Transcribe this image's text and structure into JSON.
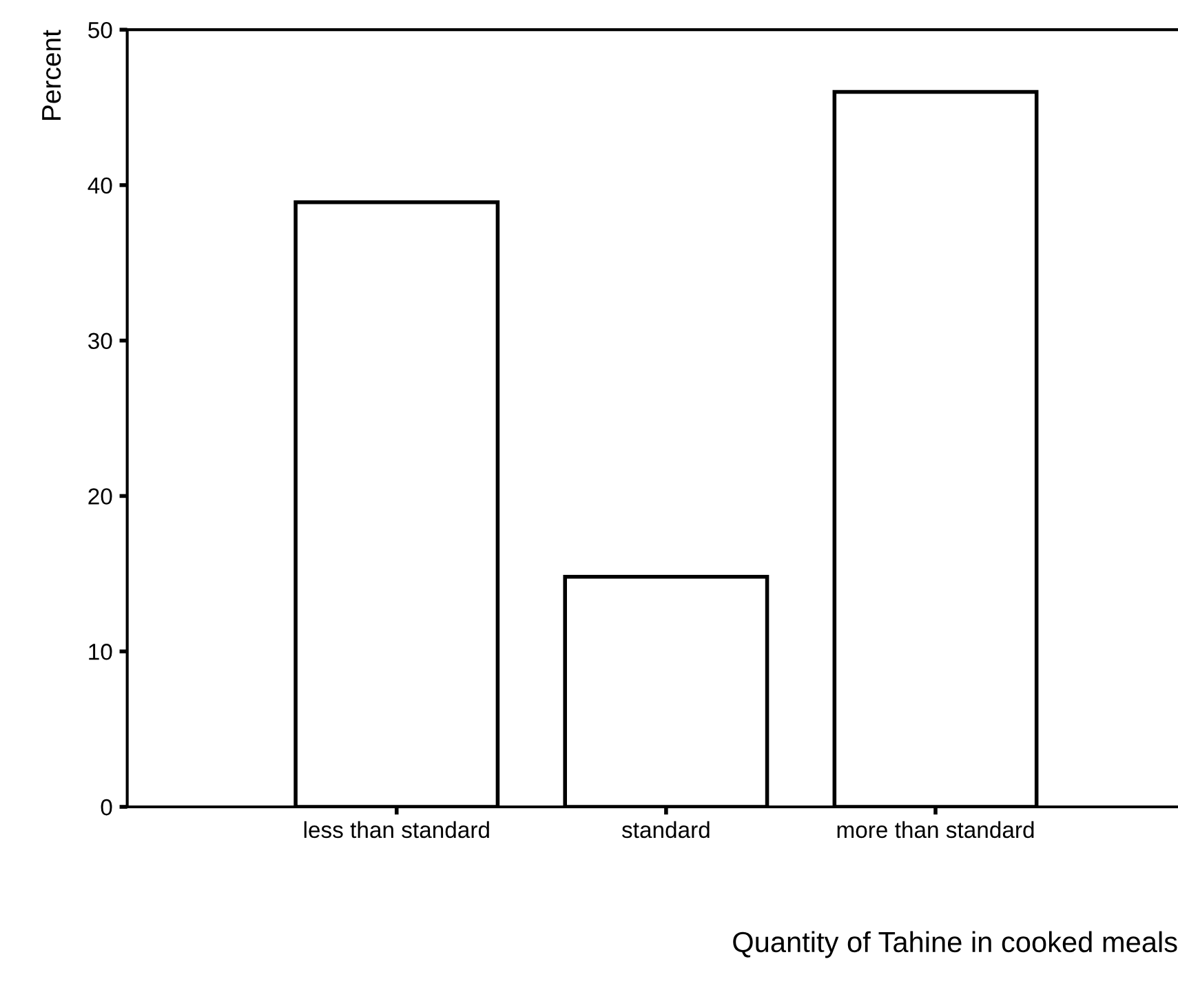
{
  "chart_data": {
    "type": "bar",
    "xlabel": "Quantity of Tahine in cooked meals",
    "ylabel": "Percent",
    "categories": [
      "less than standard",
      "standard",
      "more than standard"
    ],
    "values": [
      38.9,
      14.8,
      46.0
    ],
    "color": "#ffffff",
    "ylim": [
      0,
      50
    ],
    "yticks": [
      0,
      10,
      20,
      30,
      40,
      50
    ],
    "grid": false,
    "legend": false
  }
}
